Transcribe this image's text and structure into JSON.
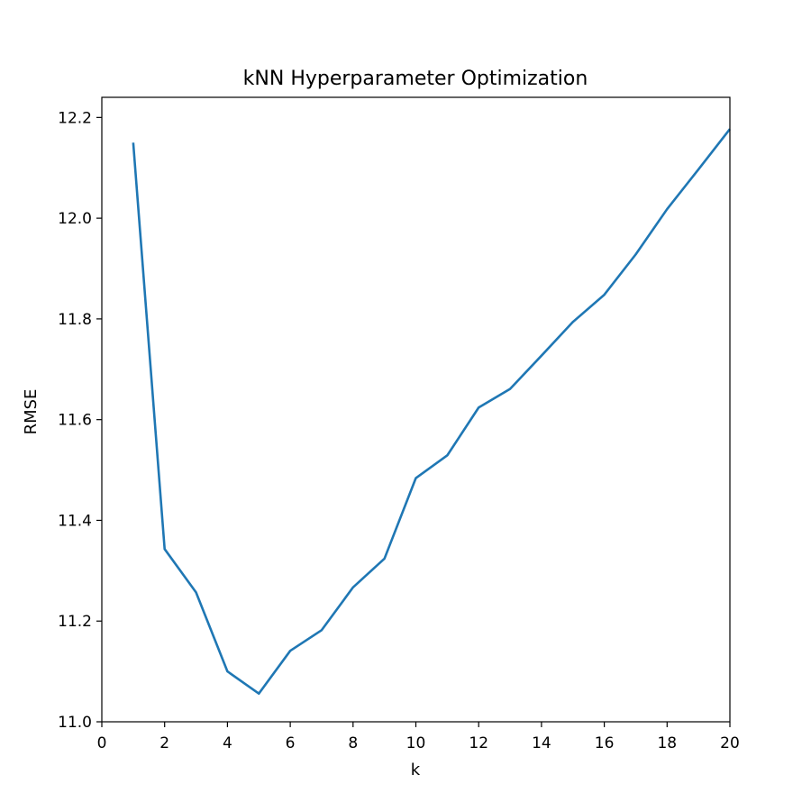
{
  "chart_data": {
    "type": "line",
    "title": "kNN Hyperparameter Optimization",
    "xlabel": "k",
    "ylabel": "RMSE",
    "xlim": [
      0,
      20
    ],
    "ylim": [
      11.0,
      12.24
    ],
    "xticks": [
      0,
      2,
      4,
      6,
      8,
      10,
      12,
      14,
      16,
      18,
      20
    ],
    "yticks": [
      11.0,
      11.2,
      11.4,
      11.6,
      11.8,
      12.0,
      12.2
    ],
    "ytick_labels": [
      "11.0",
      "11.2",
      "11.4",
      "11.6",
      "11.8",
      "12.0",
      "12.2"
    ],
    "grid": false,
    "legend": "none",
    "series": [
      {
        "color": "#1f77b4",
        "x": [
          1,
          2,
          3,
          4,
          5,
          6,
          7,
          8,
          9,
          10,
          11,
          12,
          13,
          14,
          15,
          16,
          17,
          18,
          19,
          20
        ],
        "values": [
          12.15,
          11.343,
          11.257,
          11.1,
          11.056,
          11.141,
          11.182,
          11.267,
          11.324,
          11.484,
          11.529,
          11.624,
          11.661,
          11.727,
          11.794,
          11.848,
          11.928,
          12.018,
          12.097,
          12.177
        ]
      }
    ]
  }
}
